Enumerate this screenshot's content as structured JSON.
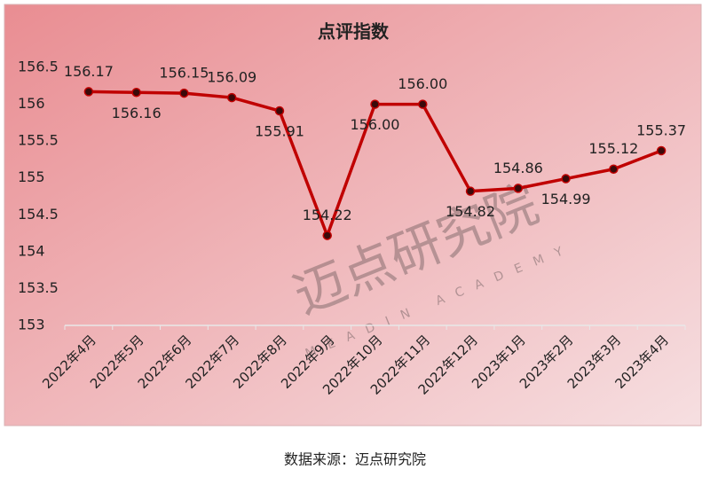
{
  "chart_data": {
    "type": "line",
    "title": "点评指数",
    "categories": [
      "2022年4月",
      "2022年5月",
      "2022年6月",
      "2022年7月",
      "2022年8月",
      "2022年9月",
      "2022年10月",
      "2022年11月",
      "2022年12月",
      "2023年1月",
      "2023年2月",
      "2023年3月",
      "2023年4月"
    ],
    "series": [
      {
        "name": "点评指数",
        "color": "#c00000",
        "values": [
          156.17,
          156.16,
          156.15,
          156.09,
          155.91,
          154.22,
          156.0,
          156.0,
          154.82,
          154.86,
          154.99,
          155.12,
          155.37
        ],
        "value_labels": [
          "156.17",
          "156.16",
          "156.15",
          "156.09",
          "155.91",
          "154.22",
          "156.00",
          "156.00",
          "154.82",
          "154.86",
          "154.99",
          "155.12",
          "155.37"
        ]
      }
    ],
    "ylim": [
      153,
      156.5
    ],
    "yticks": [
      153,
      153.5,
      154,
      154.5,
      155,
      155.5,
      156,
      156.5
    ],
    "grid": false,
    "watermark": "迈点研究院",
    "watermark_subtitle": "MEADIN ACADEMY",
    "source": "数据来源：迈点研究院"
  }
}
